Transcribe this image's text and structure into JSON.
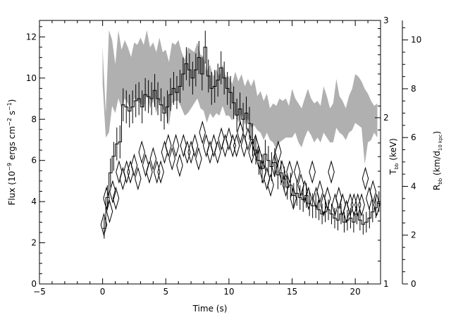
{
  "chart_data": {
    "type": "line",
    "title": "",
    "xlabel": "Time (s)",
    "xlim": [
      -5,
      22
    ],
    "x_ticks": [
      "−5",
      "0",
      "5",
      "10",
      "15",
      "20"
    ],
    "left_axis": {
      "label_parts": [
        "Flux (10",
        "−9",
        " ergs cm",
        "−2",
        " s",
        "−1",
        ")"
      ],
      "ylim": [
        0,
        12.8
      ],
      "ticks": [
        "0",
        "2",
        "4",
        "6",
        "8",
        "10",
        "12"
      ]
    },
    "temp_axis": {
      "label_main": "T",
      "label_sub": "bb",
      "label_unit": " (keV)",
      "ylim": [
        1,
        3
      ],
      "ticks": [
        "1",
        "2",
        "3"
      ]
    },
    "radius_axis": {
      "label_main": "R",
      "label_sub1": "bb",
      "label_mid": " (km/d",
      "label_sub2": "10 kpc",
      "label_end": ")",
      "ylim": [
        0,
        10.8
      ],
      "ticks": [
        "0",
        "2",
        "4",
        "6",
        "8",
        "10"
      ]
    },
    "series": [
      {
        "style": "histogram-with-errorbars",
        "axis": "left",
        "x": [
          0.0,
          0.25,
          0.5,
          0.75,
          1.0,
          1.25,
          1.5,
          1.75,
          2.0,
          2.25,
          2.5,
          2.75,
          3.0,
          3.25,
          3.5,
          3.75,
          4.0,
          4.25,
          4.5,
          4.75,
          5.0,
          5.25,
          5.5,
          5.75,
          6.0,
          6.25,
          6.5,
          6.75,
          7.0,
          7.25,
          7.5,
          7.75,
          8.0,
          8.25,
          8.5,
          8.75,
          9.0,
          9.25,
          9.5,
          9.75,
          10.0,
          10.25,
          10.5,
          10.75,
          11.0,
          11.25,
          11.5,
          11.75,
          12.0,
          12.25,
          12.5,
          12.75,
          13.0,
          13.25,
          13.5,
          13.75,
          14.0,
          14.25,
          14.5,
          14.75,
          15.0,
          15.25,
          15.5,
          15.75,
          16.0,
          16.25,
          16.5,
          16.75,
          17.0,
          17.25,
          17.5,
          17.75,
          18.0,
          18.25,
          18.5,
          18.75,
          19.0,
          19.25,
          19.5,
          19.75,
          20.0,
          20.25,
          20.5,
          20.75,
          21.0,
          21.25,
          21.5,
          21.75
        ],
        "y": [
          2.7,
          4.2,
          5.4,
          6.2,
          6.8,
          6.9,
          8.7,
          8.6,
          8.4,
          8.6,
          8.9,
          9.0,
          8.6,
          9.2,
          9.1,
          9.0,
          9.4,
          9.0,
          8.7,
          8.3,
          8.6,
          9.2,
          9.5,
          9.3,
          9.6,
          10.2,
          10.7,
          10.4,
          10.0,
          10.4,
          11.0,
          10.2,
          11.5,
          10.1,
          9.5,
          9.6,
          9.9,
          10.5,
          10.0,
          9.5,
          9.3,
          8.8,
          8.2,
          8.5,
          8.0,
          8.3,
          7.8,
          7.0,
          6.5,
          6.0,
          5.6,
          6.3,
          6.0,
          5.7,
          5.9,
          5.3,
          5.4,
          5.1,
          4.7,
          4.8,
          4.3,
          4.4,
          4.2,
          4.1,
          4.3,
          3.9,
          3.8,
          3.8,
          3.6,
          3.4,
          3.5,
          3.6,
          3.4,
          3.2,
          3.1,
          3.4,
          3.0,
          3.1,
          3.2,
          3.0,
          3.4,
          3.1,
          2.9,
          3.0,
          3.2,
          3.5,
          3.7,
          4.0
        ],
        "yerr": [
          0.5,
          0.6,
          0.7,
          0.7,
          0.8,
          0.8,
          0.8,
          0.8,
          0.8,
          0.8,
          0.8,
          0.8,
          0.8,
          0.8,
          0.8,
          0.8,
          0.8,
          0.8,
          0.8,
          0.8,
          0.8,
          0.8,
          0.8,
          0.8,
          0.8,
          0.8,
          0.8,
          0.8,
          0.8,
          0.8,
          0.8,
          0.8,
          0.8,
          0.8,
          0.8,
          0.8,
          0.8,
          0.8,
          0.8,
          0.8,
          0.8,
          0.8,
          0.8,
          0.8,
          0.8,
          0.8,
          0.8,
          0.8,
          0.7,
          0.7,
          0.7,
          0.7,
          0.7,
          0.7,
          0.7,
          0.7,
          0.6,
          0.6,
          0.6,
          0.6,
          0.6,
          0.6,
          0.6,
          0.6,
          0.6,
          0.6,
          0.6,
          0.6,
          0.5,
          0.5,
          0.5,
          0.5,
          0.5,
          0.5,
          0.5,
          0.5,
          0.5,
          0.5,
          0.5,
          0.5,
          0.5,
          0.5,
          0.5,
          0.5,
          0.5,
          0.5,
          0.5,
          0.5
        ]
      },
      {
        "style": "diamond-errorbox",
        "axis": "temp",
        "x": [
          0.1,
          0.3,
          0.55,
          0.8,
          1.05,
          1.3,
          1.6,
          1.9,
          2.2,
          2.5,
          2.8,
          3.1,
          3.4,
          3.7,
          4.0,
          4.3,
          4.6,
          4.9,
          5.2,
          5.5,
          5.8,
          6.1,
          6.4,
          6.7,
          7.0,
          7.3,
          7.6,
          7.9,
          8.2,
          8.5,
          8.8,
          9.1,
          9.4,
          9.7,
          10.0,
          10.3,
          10.6,
          10.9,
          11.2,
          11.5,
          11.8,
          12.1,
          12.4,
          12.7,
          13.0,
          13.3,
          13.6,
          13.9,
          14.2,
          14.5,
          14.8,
          15.1,
          15.4,
          15.7,
          16.0,
          16.3,
          16.6,
          16.9,
          17.2,
          17.5,
          17.8,
          18.1,
          18.4,
          18.7,
          19.0,
          19.3,
          19.6,
          19.9,
          20.2,
          20.5,
          20.8,
          21.1,
          21.4,
          21.7
        ],
        "y": [
          1.45,
          1.65,
          1.55,
          1.7,
          1.65,
          1.85,
          1.8,
          1.85,
          1.85,
          1.9,
          1.8,
          2.0,
          1.9,
          1.85,
          1.95,
          1.85,
          1.85,
          2.0,
          2.05,
          1.95,
          2.05,
          1.9,
          2.05,
          2.0,
          2.0,
          2.05,
          1.95,
          2.15,
          2.05,
          2.0,
          2.05,
          2.0,
          2.1,
          2.05,
          2.1,
          2.05,
          2.05,
          2.15,
          2.05,
          2.1,
          2.0,
          2.05,
          1.95,
          1.85,
          1.8,
          1.75,
          1.9,
          2.0,
          1.85,
          1.75,
          1.85,
          1.65,
          1.85,
          1.75,
          1.7,
          1.65,
          1.85,
          1.65,
          1.7,
          1.6,
          1.65,
          1.85,
          1.6,
          1.65,
          1.6,
          1.55,
          1.6,
          1.6,
          1.6,
          1.6,
          1.8,
          1.65,
          1.7,
          1.6
        ],
        "yerr": [
          0.08,
          0.08,
          0.08,
          0.08,
          0.08,
          0.08,
          0.08,
          0.08,
          0.08,
          0.08,
          0.08,
          0.08,
          0.08,
          0.08,
          0.08,
          0.08,
          0.08,
          0.08,
          0.08,
          0.08,
          0.08,
          0.08,
          0.08,
          0.08,
          0.08,
          0.08,
          0.08,
          0.08,
          0.08,
          0.08,
          0.08,
          0.08,
          0.08,
          0.08,
          0.08,
          0.08,
          0.08,
          0.08,
          0.08,
          0.08,
          0.08,
          0.08,
          0.08,
          0.08,
          0.08,
          0.08,
          0.08,
          0.08,
          0.08,
          0.08,
          0.08,
          0.08,
          0.08,
          0.08,
          0.08,
          0.08,
          0.08,
          0.08,
          0.08,
          0.08,
          0.08,
          0.08,
          0.08,
          0.08,
          0.08,
          0.08,
          0.08,
          0.08,
          0.08,
          0.08,
          0.08,
          0.08,
          0.08,
          0.08
        ]
      },
      {
        "style": "shaded-band",
        "axis": "radius",
        "color": "#b0b0b0",
        "x": [
          0.0,
          0.25,
          0.5,
          0.75,
          1.0,
          1.25,
          1.5,
          1.75,
          2.0,
          2.25,
          2.5,
          2.75,
          3.0,
          3.25,
          3.5,
          3.75,
          4.0,
          4.25,
          4.5,
          4.75,
          5.0,
          5.25,
          5.5,
          5.75,
          6.0,
          6.25,
          6.5,
          6.75,
          7.0,
          7.25,
          7.5,
          7.75,
          8.0,
          8.25,
          8.5,
          8.75,
          9.0,
          9.25,
          9.5,
          9.75,
          10.0,
          10.25,
          10.5,
          10.75,
          11.0,
          11.25,
          11.5,
          11.75,
          12.0,
          12.25,
          12.5,
          12.75,
          13.0,
          13.25,
          13.5,
          13.75,
          14.0,
          14.25,
          14.5,
          14.75,
          15.0,
          15.25,
          15.5,
          15.75,
          16.0,
          16.25,
          16.5,
          16.75,
          17.0,
          17.25,
          17.5,
          17.75,
          18.0,
          18.25,
          18.5,
          18.75,
          19.0,
          19.25,
          19.5,
          19.75,
          20.0,
          20.25,
          20.5,
          20.75,
          21.0,
          21.25,
          21.5,
          21.75
        ],
        "upper": [
          9.7,
          7.0,
          10.4,
          10.0,
          9.0,
          10.4,
          9.6,
          10.0,
          9.7,
          9.3,
          9.9,
          9.8,
          10.1,
          9.8,
          10.4,
          9.7,
          9.9,
          9.5,
          10.1,
          9.5,
          9.6,
          9.1,
          9.9,
          9.8,
          10.0,
          9.5,
          9.2,
          9.7,
          9.6,
          9.5,
          9.9,
          9.4,
          9.3,
          8.7,
          9.0,
          8.5,
          8.8,
          8.5,
          9.0,
          8.5,
          8.5,
          8.2,
          8.7,
          8.3,
          8.6,
          8.1,
          8.4,
          8.1,
          8.4,
          7.7,
          7.9,
          7.5,
          7.8,
          7.2,
          7.4,
          7.3,
          7.6,
          7.5,
          7.6,
          7.3,
          8.0,
          7.6,
          7.4,
          7.2,
          7.6,
          8.0,
          7.6,
          7.4,
          7.5,
          7.3,
          8.1,
          7.7,
          7.2,
          7.4,
          8.4,
          7.7,
          7.5,
          7.2,
          7.7,
          8.0,
          8.6,
          8.5,
          8.3,
          8.0,
          7.8,
          7.5,
          7.3,
          7.4
        ],
        "lower": [
          8.2,
          6.0,
          6.2,
          7.3,
          7.0,
          7.6,
          7.2,
          7.6,
          7.4,
          7.1,
          7.6,
          7.5,
          7.4,
          7.2,
          7.8,
          7.2,
          7.5,
          7.0,
          7.6,
          7.2,
          7.0,
          6.5,
          7.4,
          7.5,
          7.5,
          7.2,
          6.9,
          7.0,
          7.2,
          7.4,
          7.6,
          7.2,
          7.1,
          6.6,
          7.0,
          6.8,
          7.0,
          6.9,
          7.3,
          6.9,
          6.9,
          6.7,
          7.0,
          6.6,
          7.0,
          6.5,
          6.8,
          6.4,
          6.5,
          6.3,
          6.2,
          5.9,
          6.2,
          5.9,
          5.8,
          5.5,
          5.8,
          5.9,
          6.0,
          6.0,
          6.0,
          6.2,
          5.8,
          5.6,
          6.0,
          6.3,
          6.1,
          5.8,
          6.0,
          5.8,
          6.2,
          6.0,
          5.8,
          5.8,
          6.4,
          6.2,
          6.1,
          5.9,
          6.2,
          6.3,
          6.6,
          6.5,
          6.4,
          4.9,
          5.8,
          5.9,
          6.2,
          6.0
        ]
      }
    ]
  }
}
